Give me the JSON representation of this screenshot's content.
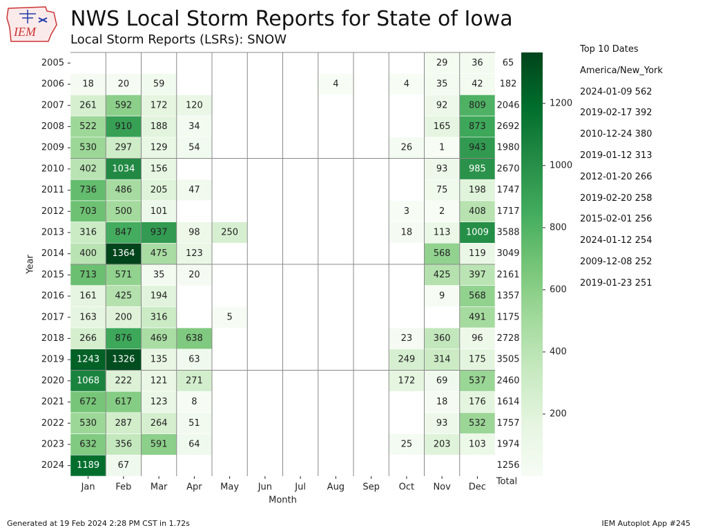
{
  "header": {
    "title": "NWS Local Storm Reports for State of Iowa",
    "subtitle": "Local Storm Reports (LSRs): SNOW",
    "logo_text": "IEM"
  },
  "chart_data": {
    "type": "heatmap",
    "xlabel": "Month",
    "ylabel": "Year",
    "months": [
      "Jan",
      "Feb",
      "Mar",
      "Apr",
      "May",
      "Jun",
      "Jul",
      "Aug",
      "Sep",
      "Oct",
      "Nov",
      "Dec"
    ],
    "years": [
      "2005",
      "2006",
      "2007",
      "2008",
      "2009",
      "2010",
      "2011",
      "2012",
      "2013",
      "2014",
      "2015",
      "2016",
      "2017",
      "2018",
      "2019",
      "2020",
      "2021",
      "2022",
      "2023",
      "2024"
    ],
    "values": [
      [
        null,
        null,
        null,
        null,
        null,
        null,
        null,
        null,
        null,
        null,
        29,
        36
      ],
      [
        18,
        20,
        59,
        null,
        null,
        null,
        null,
        4,
        null,
        4,
        35,
        42
      ],
      [
        261,
        592,
        172,
        120,
        null,
        null,
        null,
        null,
        null,
        null,
        92,
        809
      ],
      [
        522,
        910,
        188,
        34,
        null,
        null,
        null,
        null,
        null,
        null,
        165,
        873
      ],
      [
        530,
        297,
        129,
        54,
        null,
        null,
        null,
        null,
        null,
        26,
        1,
        943
      ],
      [
        402,
        1034,
        156,
        null,
        null,
        null,
        null,
        null,
        null,
        null,
        93,
        985
      ],
      [
        736,
        486,
        205,
        47,
        null,
        null,
        null,
        null,
        null,
        null,
        75,
        198
      ],
      [
        703,
        500,
        101,
        null,
        null,
        null,
        null,
        null,
        null,
        3,
        2,
        408
      ],
      [
        316,
        847,
        937,
        98,
        250,
        null,
        null,
        null,
        null,
        18,
        113,
        1009
      ],
      [
        400,
        1364,
        475,
        123,
        null,
        null,
        null,
        null,
        null,
        null,
        568,
        119
      ],
      [
        713,
        571,
        35,
        20,
        null,
        null,
        null,
        null,
        null,
        null,
        425,
        397
      ],
      [
        161,
        425,
        194,
        null,
        null,
        null,
        null,
        null,
        null,
        null,
        9,
        568
      ],
      [
        163,
        200,
        316,
        null,
        5,
        null,
        null,
        null,
        null,
        null,
        null,
        491
      ],
      [
        266,
        876,
        469,
        638,
        null,
        null,
        null,
        null,
        null,
        23,
        360,
        96
      ],
      [
        1243,
        1326,
        135,
        63,
        null,
        null,
        null,
        null,
        null,
        249,
        314,
        175
      ],
      [
        1068,
        222,
        121,
        271,
        null,
        null,
        null,
        null,
        null,
        172,
        69,
        537
      ],
      [
        672,
        617,
        123,
        8,
        null,
        null,
        null,
        null,
        null,
        null,
        18,
        176
      ],
      [
        530,
        287,
        264,
        51,
        null,
        null,
        null,
        null,
        null,
        null,
        93,
        532
      ],
      [
        632,
        356,
        591,
        64,
        null,
        null,
        null,
        null,
        null,
        25,
        203,
        103
      ],
      [
        1189,
        67,
        null,
        null,
        null,
        null,
        null,
        null,
        null,
        null,
        null,
        null
      ]
    ],
    "totals": [
      65,
      182,
      2046,
      2692,
      1980,
      2670,
      1747,
      1717,
      3588,
      3049,
      2161,
      1357,
      1175,
      2728,
      3505,
      2460,
      1614,
      1757,
      1974,
      1256
    ],
    "totals_label": "Total",
    "color_range": [
      0,
      1364
    ],
    "colorbar_ticks": [
      200,
      400,
      600,
      800,
      1000,
      1200
    ],
    "colormap": "Greens",
    "grid": true
  },
  "top10": {
    "heading": "Top 10 Dates",
    "timezone": "America/New_York",
    "items": [
      "2024-01-09 562",
      "2019-02-17 392",
      "2010-12-24 380",
      "2019-01-12 313",
      "2012-01-20 266",
      "2019-02-20 258",
      "2015-02-01 256",
      "2024-01-12 254",
      "2009-12-08 252",
      "2019-01-23 251"
    ]
  },
  "footer": {
    "generated": "Generated at 19 Feb 2024 2:28 PM CST in 1.72s",
    "app": "IEM Autoplot App #245"
  }
}
